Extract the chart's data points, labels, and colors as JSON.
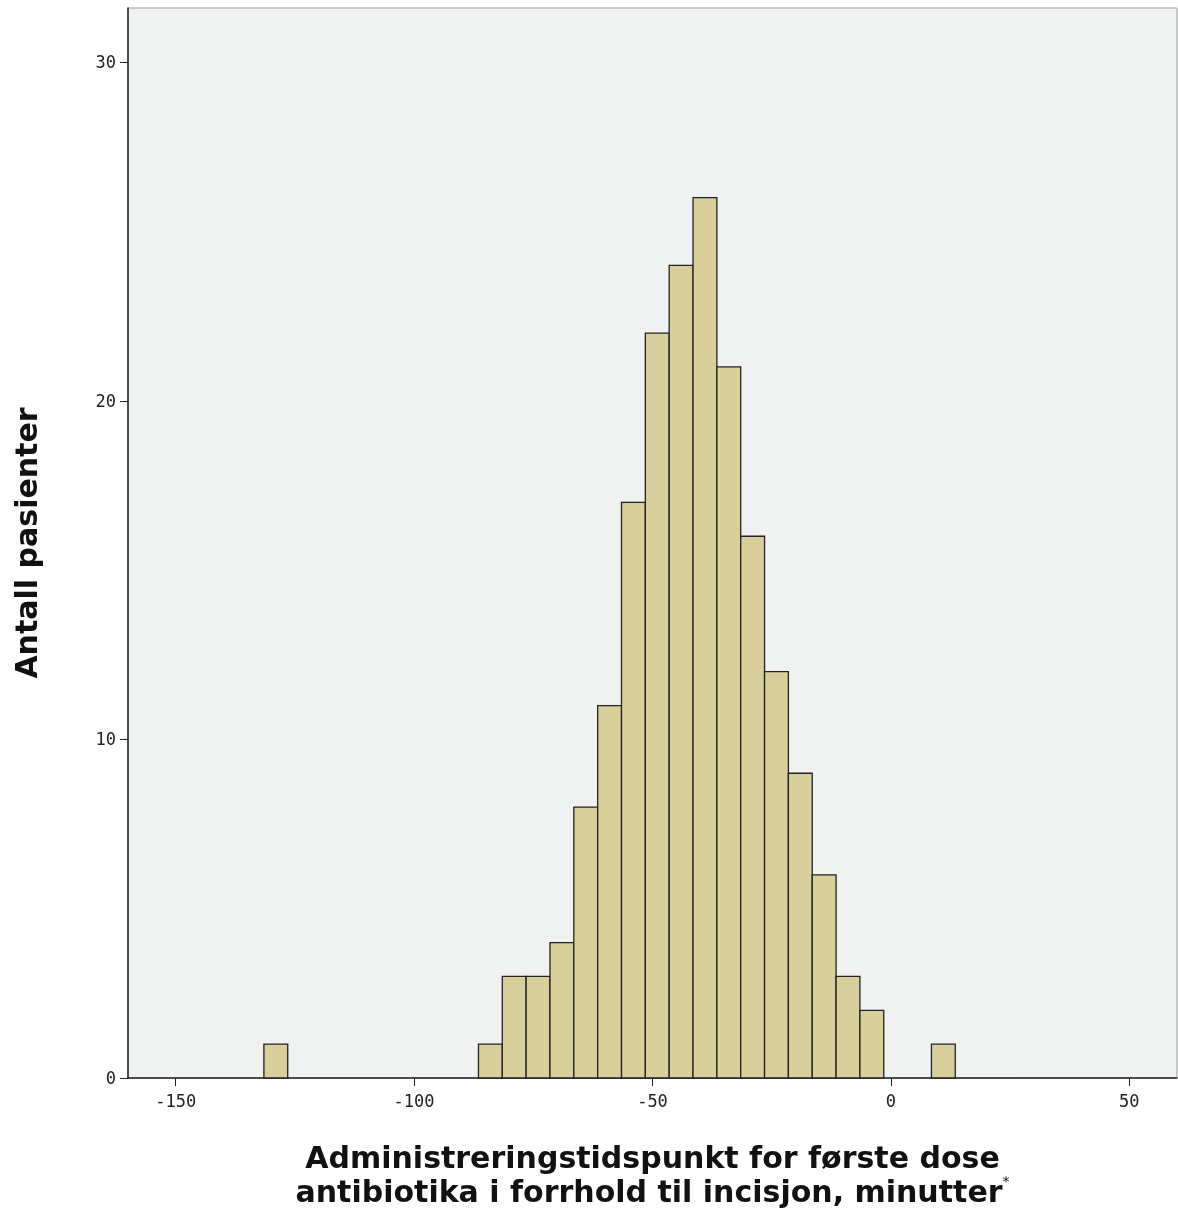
{
  "chart_data": {
    "type": "histogram",
    "xlabel": "Administreringstidspunkt for første dose\nantibiotika i forrhold til incisjon, minutter$^{*}$",
    "ylabel": "Antall pasienter",
    "bins": [
      -131.5,
      -126.5,
      -121.5,
      -116.5,
      -111.5,
      -106.5,
      -101.5,
      -96.5,
      -91.5,
      -86.5,
      -81.5,
      -76.5,
      -71.5,
      -66.5,
      -61.5,
      -56.5,
      -51.5,
      -46.5,
      -41.5,
      -36.5,
      -31.5,
      -26.5,
      -21.5,
      -16.5,
      -11.5,
      -6.5,
      -1.5,
      3.5,
      8.5,
      13.5
    ],
    "values": [
      1,
      0,
      0,
      0,
      0,
      0,
      0,
      0,
      0,
      1,
      3,
      3,
      4,
      8,
      11,
      17,
      22,
      24,
      26,
      21,
      16,
      12,
      9,
      6,
      3,
      2,
      0,
      0,
      1
    ],
    "color": "#d8cf9b",
    "xlim": [
      -160,
      60
    ],
    "xticks": [
      -150,
      -100,
      -50,
      0,
      50
    ],
    "ylim": [
      0,
      31.6
    ],
    "yticks": [
      0,
      10,
      20,
      30
    ],
    "grid": false
  }
}
